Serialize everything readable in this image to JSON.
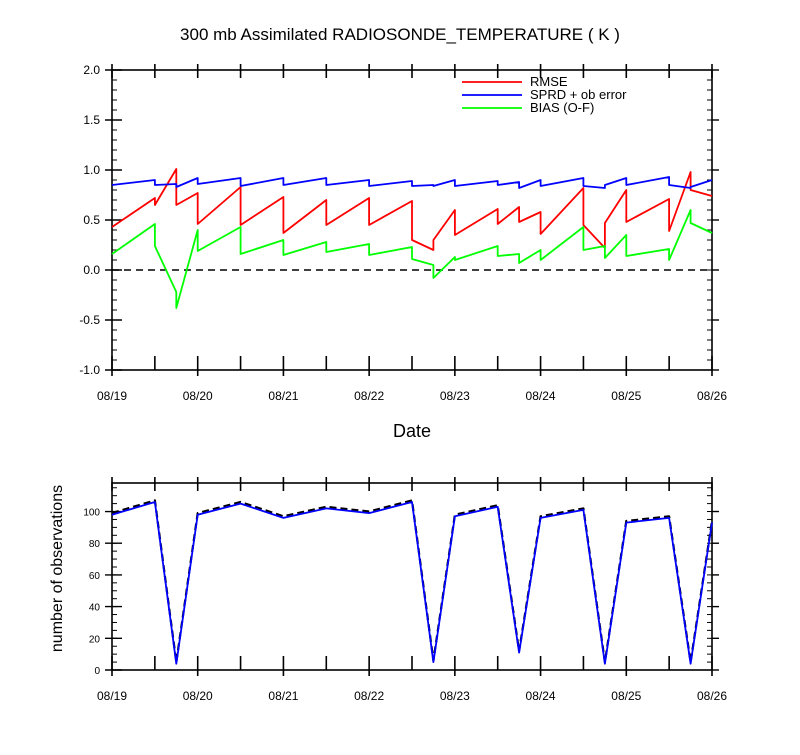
{
  "chart_data": [
    {
      "type": "line",
      "title": "300 mb Assimilated RADIOSONDE_TEMPERATURE ( K )",
      "xlabel": "Date",
      "ylabel": "",
      "ylim": [
        -1.0,
        2.0
      ],
      "yticks": [
        "-1.0",
        "-0.5",
        "0.0",
        "0.5",
        "1.0",
        "1.5",
        "2.0"
      ],
      "xticks": [
        "08/19",
        "08/20",
        "08/21",
        "08/22",
        "08/23",
        "08/24",
        "08/25",
        "08/26"
      ],
      "x_unit": "day offset from 08/19",
      "grid": false,
      "legend_position": "top-right",
      "zero_line": 0.0,
      "series": [
        {
          "name": "RMSE",
          "color": "#ff0000",
          "x": [
            0,
            0.5,
            0.5,
            0.75,
            0.75,
            1.0,
            1.0,
            1.5,
            1.5,
            2.0,
            2.0,
            2.5,
            2.5,
            3.0,
            3.0,
            3.5,
            3.5,
            3.75,
            3.75,
            4.0,
            4.0,
            4.5,
            4.5,
            4.75,
            4.75,
            5.0,
            5.0,
            5.5,
            5.5,
            5.75,
            5.75,
            6.0,
            6.0,
            6.5,
            6.5,
            6.75,
            6.75,
            7.0
          ],
          "values": [
            0.43,
            0.72,
            0.65,
            1.01,
            0.65,
            0.77,
            0.46,
            0.83,
            0.45,
            0.73,
            0.37,
            0.7,
            0.45,
            0.72,
            0.45,
            0.69,
            0.3,
            0.2,
            0.3,
            0.6,
            0.35,
            0.61,
            0.46,
            0.63,
            0.48,
            0.58,
            0.36,
            0.82,
            0.45,
            0.22,
            0.47,
            0.8,
            0.48,
            0.71,
            0.39,
            0.98,
            0.8,
            0.74
          ]
        },
        {
          "name": "SPRD + ob error",
          "color": "#0000ff",
          "x": [
            0,
            0.5,
            0.5,
            0.75,
            0.75,
            1.0,
            1.0,
            1.5,
            1.5,
            2.0,
            2.0,
            2.5,
            2.5,
            3.0,
            3.0,
            3.5,
            3.5,
            3.75,
            3.75,
            4.0,
            4.0,
            4.5,
            4.5,
            4.75,
            4.75,
            5.0,
            5.0,
            5.5,
            5.5,
            5.75,
            5.75,
            6.0,
            6.0,
            6.5,
            6.5,
            6.75,
            6.75,
            7.0
          ],
          "values": [
            0.85,
            0.9,
            0.85,
            0.86,
            0.83,
            0.92,
            0.86,
            0.92,
            0.84,
            0.92,
            0.85,
            0.92,
            0.85,
            0.9,
            0.84,
            0.89,
            0.84,
            0.85,
            0.84,
            0.9,
            0.84,
            0.89,
            0.85,
            0.88,
            0.82,
            0.9,
            0.84,
            0.92,
            0.84,
            0.82,
            0.85,
            0.92,
            0.85,
            0.93,
            0.85,
            0.82,
            0.83,
            0.9
          ]
        },
        {
          "name": "BIAS (O-F)",
          "color": "#00ff00",
          "x": [
            0,
            0.5,
            0.5,
            0.75,
            0.75,
            1.0,
            1.0,
            1.5,
            1.5,
            2.0,
            2.0,
            2.5,
            2.5,
            3.0,
            3.0,
            3.5,
            3.5,
            3.75,
            3.75,
            4.0,
            4.0,
            4.5,
            4.5,
            4.75,
            4.75,
            5.0,
            5.0,
            5.5,
            5.5,
            5.75,
            5.75,
            6.0,
            6.0,
            6.5,
            6.5,
            6.75,
            6.75,
            7.0
          ],
          "values": [
            0.16,
            0.46,
            0.24,
            -0.22,
            -0.38,
            0.4,
            0.19,
            0.43,
            0.16,
            0.3,
            0.15,
            0.28,
            0.18,
            0.26,
            0.15,
            0.23,
            0.11,
            0.05,
            -0.08,
            0.13,
            0.1,
            0.24,
            0.14,
            0.16,
            0.07,
            0.2,
            0.1,
            0.43,
            0.2,
            0.24,
            0.12,
            0.35,
            0.14,
            0.21,
            0.1,
            0.6,
            0.47,
            0.37
          ]
        }
      ]
    },
    {
      "type": "line",
      "title": "",
      "xlabel": "",
      "ylabel": "number of observations",
      "ylim": [
        0,
        118
      ],
      "yticks": [
        "0",
        "20",
        "40",
        "60",
        "80",
        "100"
      ],
      "xticks": [
        "08/19",
        "08/20",
        "08/21",
        "08/22",
        "08/23",
        "08/24",
        "08/25",
        "08/26"
      ],
      "x_unit": "day offset from 08/19",
      "grid": false,
      "series": [
        {
          "color": "#000000",
          "dashed": true,
          "x": [
            0,
            0.5,
            0.75,
            1.0,
            1.5,
            2.0,
            2.5,
            3.0,
            3.5,
            3.75,
            4.0,
            4.5,
            4.75,
            5.0,
            5.5,
            5.75,
            6.0,
            6.5,
            6.75,
            7.0
          ],
          "values": [
            99,
            107,
            5,
            99,
            106,
            97,
            103,
            100,
            107,
            6,
            98,
            104,
            12,
            97,
            102,
            5,
            94,
            97,
            5,
            94
          ]
        },
        {
          "color": "#0000ff",
          "dashed": false,
          "x": [
            0,
            0.5,
            0.75,
            1.0,
            1.5,
            2.0,
            2.5,
            3.0,
            3.5,
            3.75,
            4.0,
            4.5,
            4.75,
            5.0,
            5.5,
            5.75,
            6.0,
            6.5,
            6.75,
            7.0
          ],
          "values": [
            98,
            106,
            4,
            98,
            105,
            96,
            102,
            99,
            106,
            5,
            97,
            103,
            11,
            96,
            101,
            4,
            93,
            96,
            4,
            93
          ]
        }
      ]
    }
  ]
}
